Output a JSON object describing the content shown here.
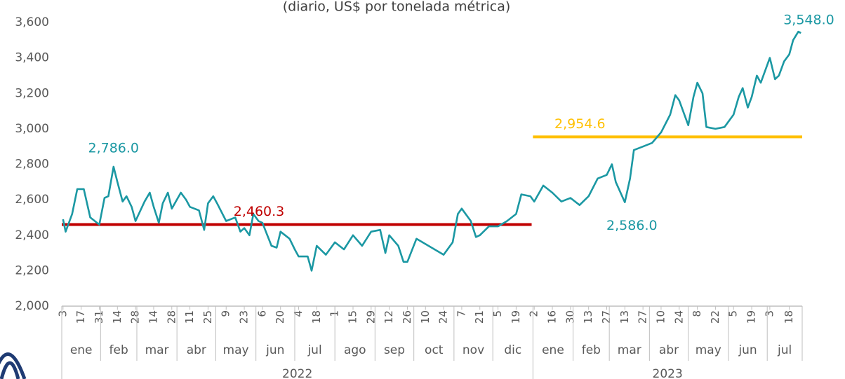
{
  "chart_data": {
    "type": "line",
    "subtitle": "(diario, US$ por tonelada métrica)",
    "ylim": [
      2000,
      3600
    ],
    "yticks": [
      {
        "value": 2000,
        "label": "2,000"
      },
      {
        "value": 2200,
        "label": "2,200"
      },
      {
        "value": 2400,
        "label": "2,400"
      },
      {
        "value": 2600,
        "label": "2,600"
      },
      {
        "value": 2800,
        "label": "2,800"
      },
      {
        "value": 3000,
        "label": "3,000"
      },
      {
        "value": 3200,
        "label": "3,200"
      },
      {
        "value": 3400,
        "label": "3,400"
      },
      {
        "value": 3600,
        "label": "3,600"
      }
    ],
    "xlim": [
      "2022-01-02",
      "2023-07-28"
    ],
    "xticks": [
      {
        "value": "2022-01-03",
        "label": "3"
      },
      {
        "value": "2022-01-17",
        "label": "17"
      },
      {
        "value": "2022-01-31",
        "label": "31"
      },
      {
        "value": "2022-02-14",
        "label": "14"
      },
      {
        "value": "2022-02-28",
        "label": "28"
      },
      {
        "value": "2022-03-14",
        "label": "14"
      },
      {
        "value": "2022-03-28",
        "label": "28"
      },
      {
        "value": "2022-04-11",
        "label": "11"
      },
      {
        "value": "2022-04-25",
        "label": "25"
      },
      {
        "value": "2022-05-09",
        "label": "9"
      },
      {
        "value": "2022-05-23",
        "label": "23"
      },
      {
        "value": "2022-06-06",
        "label": "6"
      },
      {
        "value": "2022-06-20",
        "label": "20"
      },
      {
        "value": "2022-07-04",
        "label": "4"
      },
      {
        "value": "2022-07-18",
        "label": "18"
      },
      {
        "value": "2022-08-01",
        "label": "1"
      },
      {
        "value": "2022-08-15",
        "label": "15"
      },
      {
        "value": "2022-08-29",
        "label": "29"
      },
      {
        "value": "2022-09-12",
        "label": "12"
      },
      {
        "value": "2022-09-26",
        "label": "26"
      },
      {
        "value": "2022-10-10",
        "label": "10"
      },
      {
        "value": "2022-10-24",
        "label": "24"
      },
      {
        "value": "2022-11-07",
        "label": "7"
      },
      {
        "value": "2022-11-21",
        "label": "21"
      },
      {
        "value": "2022-12-05",
        "label": "5"
      },
      {
        "value": "2022-12-19",
        "label": "19"
      },
      {
        "value": "2023-01-02",
        "label": "2"
      },
      {
        "value": "2023-01-16",
        "label": "16"
      },
      {
        "value": "2023-01-30",
        "label": "30"
      },
      {
        "value": "2023-02-13",
        "label": "13"
      },
      {
        "value": "2023-02-27",
        "label": "27"
      },
      {
        "value": "2023-03-13",
        "label": "13"
      },
      {
        "value": "2023-03-27",
        "label": "27"
      },
      {
        "value": "2023-04-10",
        "label": "10"
      },
      {
        "value": "2023-04-24",
        "label": "24"
      },
      {
        "value": "2023-05-08",
        "label": "8"
      },
      {
        "value": "2023-05-22",
        "label": "22"
      },
      {
        "value": "2023-06-05",
        "label": "5"
      },
      {
        "value": "2023-06-19",
        "label": "19"
      },
      {
        "value": "2023-07-03",
        "label": "3"
      },
      {
        "value": "2023-07-18",
        "label": "18"
      }
    ],
    "months": [
      {
        "label": "ene",
        "start": "2022-01-01"
      },
      {
        "label": "feb",
        "start": "2022-02-01"
      },
      {
        "label": "mar",
        "start": "2022-03-01"
      },
      {
        "label": "abr",
        "start": "2022-04-01"
      },
      {
        "label": "may",
        "start": "2022-05-01"
      },
      {
        "label": "jun",
        "start": "2022-06-01"
      },
      {
        "label": "jul",
        "start": "2022-07-01"
      },
      {
        "label": "ago",
        "start": "2022-08-01"
      },
      {
        "label": "sep",
        "start": "2022-09-01"
      },
      {
        "label": "oct",
        "start": "2022-10-01"
      },
      {
        "label": "nov",
        "start": "2022-11-01"
      },
      {
        "label": "dic",
        "start": "2022-12-01"
      },
      {
        "label": "ene",
        "start": "2023-01-01"
      },
      {
        "label": "feb",
        "start": "2023-02-01"
      },
      {
        "label": "mar",
        "start": "2023-03-01"
      },
      {
        "label": "abr",
        "start": "2023-04-01"
      },
      {
        "label": "may",
        "start": "2023-05-01"
      },
      {
        "label": "jun",
        "start": "2023-06-01"
      },
      {
        "label": "jul",
        "start": "2023-07-01"
      }
    ],
    "years": [
      {
        "label": "2022",
        "start": "2022-01-01"
      },
      {
        "label": "2023",
        "start": "2023-01-01"
      }
    ],
    "series": [
      {
        "color": "#1b98a3",
        "x": [
          "2022-01-03",
          "2022-01-05",
          "2022-01-10",
          "2022-01-14",
          "2022-01-19",
          "2022-01-24",
          "2022-01-31",
          "2022-02-04",
          "2022-02-07",
          "2022-02-11",
          "2022-02-14",
          "2022-02-18",
          "2022-02-21",
          "2022-02-25",
          "2022-02-28",
          "2022-03-07",
          "2022-03-11",
          "2022-03-14",
          "2022-03-18",
          "2022-03-21",
          "2022-03-25",
          "2022-03-28",
          "2022-04-04",
          "2022-04-08",
          "2022-04-11",
          "2022-04-18",
          "2022-04-22",
          "2022-04-25",
          "2022-04-29",
          "2022-05-02",
          "2022-05-09",
          "2022-05-16",
          "2022-05-20",
          "2022-05-23",
          "2022-05-27",
          "2022-05-30",
          "2022-06-03",
          "2022-06-06",
          "2022-06-13",
          "2022-06-17",
          "2022-06-20",
          "2022-06-27",
          "2022-07-01",
          "2022-07-04",
          "2022-07-11",
          "2022-07-14",
          "2022-07-18",
          "2022-07-25",
          "2022-08-01",
          "2022-08-08",
          "2022-08-15",
          "2022-08-22",
          "2022-08-29",
          "2022-09-05",
          "2022-09-09",
          "2022-09-12",
          "2022-09-19",
          "2022-09-23",
          "2022-09-26",
          "2022-10-03",
          "2022-10-10",
          "2022-10-17",
          "2022-10-24",
          "2022-10-31",
          "2022-11-04",
          "2022-11-07",
          "2022-11-14",
          "2022-11-18",
          "2022-11-21",
          "2022-11-28",
          "2022-12-05",
          "2022-12-12",
          "2022-12-19",
          "2022-12-23",
          "2022-12-30",
          "2023-01-02",
          "2023-01-09",
          "2023-01-16",
          "2023-01-23",
          "2023-01-30",
          "2023-02-06",
          "2023-02-13",
          "2023-02-20",
          "2023-02-27",
          "2023-03-03",
          "2023-03-06",
          "2023-03-13",
          "2023-03-17",
          "2023-03-20",
          "2023-03-27",
          "2023-04-03",
          "2023-04-10",
          "2023-04-17",
          "2023-04-21",
          "2023-04-24",
          "2023-05-01",
          "2023-05-05",
          "2023-05-08",
          "2023-05-12",
          "2023-05-15",
          "2023-05-22",
          "2023-05-29",
          "2023-06-05",
          "2023-06-09",
          "2023-06-12",
          "2023-06-16",
          "2023-06-19",
          "2023-06-23",
          "2023-06-26",
          "2023-07-03",
          "2023-07-07",
          "2023-07-10",
          "2023-07-14",
          "2023-07-18",
          "2023-07-21",
          "2023-07-25",
          "2023-07-27"
        ],
        "values": [
          2490,
          2420,
          2520,
          2660,
          2660,
          2500,
          2460,
          2610,
          2620,
          2786,
          2700,
          2590,
          2620,
          2560,
          2480,
          2590,
          2640,
          2560,
          2470,
          2580,
          2640,
          2550,
          2640,
          2600,
          2560,
          2540,
          2430,
          2580,
          2620,
          2580,
          2480,
          2500,
          2420,
          2440,
          2400,
          2520,
          2480,
          2470,
          2340,
          2330,
          2420,
          2380,
          2320,
          2280,
          2280,
          2200,
          2340,
          2290,
          2360,
          2320,
          2400,
          2340,
          2420,
          2430,
          2300,
          2400,
          2340,
          2250,
          2250,
          2380,
          2350,
          2320,
          2290,
          2360,
          2520,
          2550,
          2480,
          2390,
          2400,
          2450,
          2450,
          2480,
          2520,
          2630,
          2620,
          2590,
          2680,
          2640,
          2590,
          2610,
          2570,
          2620,
          2720,
          2740,
          2800,
          2700,
          2586,
          2720,
          2880,
          2900,
          2920,
          2980,
          3080,
          3190,
          3160,
          3020,
          3180,
          3260,
          3200,
          3010,
          3000,
          3010,
          3080,
          3180,
          3230,
          3120,
          3180,
          3300,
          3260,
          3400,
          3280,
          3300,
          3380,
          3420,
          3500,
          3548,
          3540
        ]
      }
    ],
    "annotations": [
      {
        "text": "2,786.0",
        "x": "2022-02-11",
        "value": 2786
      },
      {
        "text": "2,586.0",
        "x": "2023-03-13",
        "value": 2586
      },
      {
        "text": "3,548.0",
        "x": "2023-07-25",
        "value": 3548
      }
    ],
    "averages": [
      {
        "label": "2,460.3",
        "value": 2460.3,
        "color": "#c00000",
        "x": [
          "2022-01-02",
          "2022-12-31"
        ]
      },
      {
        "label": "2,954.6",
        "value": 2954.6,
        "color": "#ffc000",
        "x": [
          "2023-01-01",
          "2023-07-28"
        ]
      }
    ]
  }
}
